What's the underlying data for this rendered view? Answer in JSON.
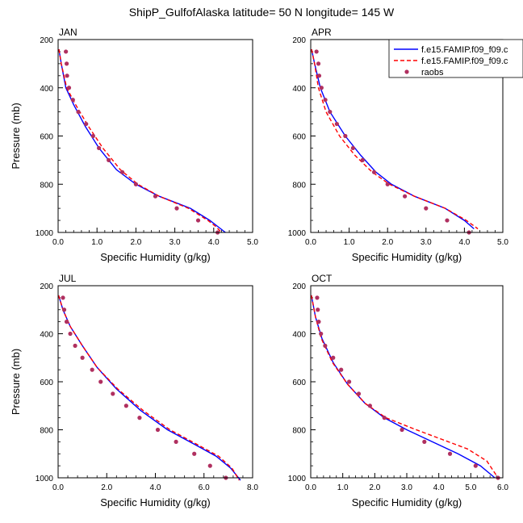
{
  "title": "ShipP_GulfofAlaska  latitude= 50 N longitude= 145 W",
  "legend": {
    "placement": "top-right of APR panel",
    "entries": [
      {
        "label": "f.e15.FAMIP.f09_f09.c",
        "style": "solid",
        "color": "#0000ff"
      },
      {
        "label": "f.e15.FAMIP.f09_f09.c",
        "style": "dashed",
        "color": "#ff0000"
      },
      {
        "label": "raobs",
        "style": "marker",
        "color": "#b03060"
      }
    ]
  },
  "colors": {
    "model_a": "#0000ff",
    "model_b": "#ff0000",
    "raobs": "#b03060"
  },
  "chart_data": [
    {
      "type": "line",
      "panel": "JAN",
      "xlabel": "Specific Humidity (g/kg)",
      "ylabel": "Pressure (mb)",
      "xlim": [
        0,
        5
      ],
      "ylim": [
        1000,
        200
      ],
      "y_reversed": true,
      "xticks": [
        "0.0",
        "1.0",
        "2.0",
        "3.0",
        "4.0",
        "5.0"
      ],
      "xtick_values": [
        0,
        1,
        2,
        3,
        4,
        5
      ],
      "yticks": [
        "200",
        "400",
        "600",
        "800",
        "1000"
      ],
      "ytick_values": [
        200,
        400,
        600,
        800,
        1000
      ],
      "series": [
        {
          "key": "model_a",
          "style": "solid",
          "x": [
            0.02,
            0.08,
            0.2,
            0.4,
            0.7,
            1.05,
            1.5,
            2.0,
            2.6,
            3.4,
            3.9,
            4.1,
            4.3
          ],
          "y": [
            240,
            300,
            400,
            470,
            560,
            650,
            740,
            800,
            850,
            900,
            950,
            975,
            1000
          ]
        },
        {
          "key": "model_b",
          "style": "dashed",
          "x": [
            0.02,
            0.08,
            0.22,
            0.45,
            0.78,
            1.15,
            1.6,
            2.05,
            2.6,
            3.35,
            3.85,
            4.05,
            4.2
          ],
          "y": [
            240,
            300,
            400,
            470,
            560,
            650,
            740,
            800,
            850,
            900,
            950,
            975,
            1000
          ]
        },
        {
          "key": "raobs",
          "style": "marker",
          "x": [
            0.2,
            0.22,
            0.23,
            0.28,
            0.38,
            0.52,
            0.72,
            0.9,
            1.05,
            1.3,
            1.65,
            2.0,
            2.5,
            3.05,
            3.6,
            4.1
          ],
          "y": [
            250,
            300,
            350,
            400,
            450,
            500,
            550,
            600,
            650,
            700,
            750,
            800,
            850,
            900,
            950,
            1000
          ]
        }
      ]
    },
    {
      "type": "line",
      "panel": "APR",
      "xlabel": "Specific Humidity (g/kg)",
      "ylabel": "",
      "xlim": [
        0,
        5
      ],
      "ylim": [
        1000,
        200
      ],
      "y_reversed": true,
      "xticks": [
        "0.0",
        "1.0",
        "2.0",
        "3.0",
        "4.0",
        "5.0"
      ],
      "xtick_values": [
        0,
        1,
        2,
        3,
        4,
        5
      ],
      "yticks": [
        "200",
        "400",
        "600",
        "800",
        "1000"
      ],
      "ytick_values": [
        200,
        400,
        600,
        800,
        1000
      ],
      "series": [
        {
          "key": "model_a",
          "style": "solid",
          "x": [
            0.02,
            0.1,
            0.25,
            0.5,
            0.9,
            1.3,
            1.7,
            2.1,
            2.7,
            3.5,
            4.0,
            4.25
          ],
          "y": [
            240,
            300,
            400,
            500,
            600,
            680,
            750,
            800,
            850,
            900,
            950,
            985
          ]
        },
        {
          "key": "model_b",
          "style": "dashed",
          "x": [
            0.02,
            0.1,
            0.2,
            0.4,
            0.75,
            1.15,
            1.6,
            2.05,
            2.7,
            3.5,
            4.05,
            4.35
          ],
          "y": [
            240,
            300,
            400,
            500,
            600,
            680,
            750,
            800,
            850,
            900,
            950,
            985
          ]
        },
        {
          "key": "raobs",
          "style": "marker",
          "x": [
            0.15,
            0.2,
            0.22,
            0.28,
            0.38,
            0.5,
            0.68,
            0.9,
            1.1,
            1.35,
            1.65,
            2.0,
            2.45,
            3.0,
            3.55,
            4.12
          ],
          "y": [
            250,
            300,
            350,
            400,
            450,
            500,
            550,
            600,
            650,
            700,
            750,
            800,
            850,
            900,
            950,
            1000
          ]
        }
      ]
    },
    {
      "type": "line",
      "panel": "JUL",
      "xlabel": "Specific Humidity (g/kg)",
      "ylabel": "Pressure (mb)",
      "xlim": [
        0,
        8
      ],
      "ylim": [
        1000,
        200
      ],
      "y_reversed": true,
      "xticks": [
        "0.0",
        "2.0",
        "4.0",
        "6.0",
        "8.0"
      ],
      "xtick_values": [
        0,
        2,
        4,
        6,
        8
      ],
      "yticks": [
        "200",
        "400",
        "600",
        "800",
        "1000"
      ],
      "ytick_values": [
        200,
        400,
        600,
        800,
        1000
      ],
      "series": [
        {
          "key": "model_a",
          "style": "solid",
          "x": [
            0.02,
            0.2,
            0.5,
            1.0,
            1.6,
            2.4,
            3.4,
            4.5,
            5.6,
            6.5,
            7.1,
            7.5
          ],
          "y": [
            240,
            300,
            370,
            450,
            540,
            630,
            720,
            800,
            860,
            910,
            960,
            1010
          ]
        },
        {
          "key": "model_b",
          "style": "dashed",
          "x": [
            0.02,
            0.2,
            0.5,
            1.0,
            1.6,
            2.45,
            3.5,
            4.6,
            5.7,
            6.6,
            7.15,
            7.45
          ],
          "y": [
            240,
            300,
            370,
            450,
            540,
            630,
            720,
            800,
            860,
            910,
            960,
            1010
          ]
        },
        {
          "key": "raobs",
          "style": "marker",
          "x": [
            0.2,
            0.25,
            0.35,
            0.5,
            0.7,
            1.0,
            1.4,
            1.75,
            2.25,
            2.8,
            3.35,
            4.1,
            4.85,
            5.6,
            6.25,
            6.9
          ],
          "y": [
            250,
            300,
            350,
            400,
            450,
            500,
            550,
            600,
            650,
            700,
            750,
            800,
            850,
            900,
            950,
            1000
          ]
        }
      ]
    },
    {
      "type": "line",
      "panel": "OCT",
      "xlabel": "Specific Humidity (g/kg)",
      "ylabel": "",
      "xlim": [
        0,
        6
      ],
      "ylim": [
        1000,
        200
      ],
      "y_reversed": true,
      "xticks": [
        "0.0",
        "1.0",
        "2.0",
        "3.0",
        "4.0",
        "5.0",
        "6.0"
      ],
      "xtick_values": [
        0,
        1,
        2,
        3,
        4,
        5,
        6
      ],
      "yticks": [
        "200",
        "400",
        "600",
        "800",
        "1000"
      ],
      "ytick_values": [
        200,
        400,
        600,
        800,
        1000
      ],
      "series": [
        {
          "key": "model_a",
          "style": "solid",
          "x": [
            0.02,
            0.15,
            0.35,
            0.7,
            1.15,
            1.7,
            2.3,
            3.0,
            3.8,
            4.6,
            5.3,
            5.75
          ],
          "y": [
            240,
            330,
            420,
            520,
            610,
            690,
            750,
            800,
            850,
            900,
            950,
            1000
          ]
        },
        {
          "key": "model_b",
          "style": "dashed",
          "x": [
            0.02,
            0.15,
            0.33,
            0.68,
            1.15,
            1.7,
            2.35,
            3.2,
            4.1,
            4.9,
            5.5,
            5.85
          ],
          "y": [
            240,
            330,
            420,
            520,
            610,
            690,
            750,
            795,
            840,
            880,
            930,
            1000
          ]
        },
        {
          "key": "raobs",
          "style": "marker",
          "x": [
            0.2,
            0.22,
            0.25,
            0.32,
            0.45,
            0.7,
            0.95,
            1.2,
            1.5,
            1.85,
            2.3,
            2.85,
            3.55,
            4.35,
            5.15,
            5.85
          ],
          "y": [
            250,
            300,
            350,
            400,
            450,
            500,
            550,
            600,
            650,
            700,
            750,
            800,
            850,
            900,
            950,
            1000
          ]
        }
      ]
    }
  ]
}
